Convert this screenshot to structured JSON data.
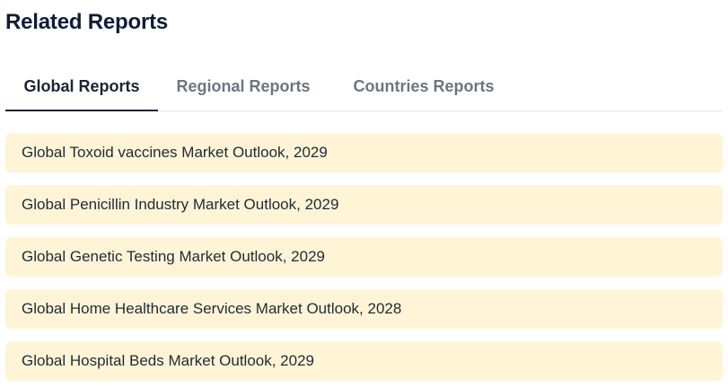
{
  "page": {
    "title": "Related Reports"
  },
  "tabs": [
    {
      "label": "Global Reports",
      "active": true
    },
    {
      "label": "Regional Reports",
      "active": false
    },
    {
      "label": "Countries Reports",
      "active": false
    }
  ],
  "reports": [
    {
      "title": "Global Toxoid vaccines Market Outlook, 2029"
    },
    {
      "title": "Global Penicillin Industry Market Outlook, 2029"
    },
    {
      "title": "Global Genetic Testing Market Outlook, 2029"
    },
    {
      "title": "Global Home Healthcare Services Market Outlook, 2028"
    },
    {
      "title": "Global Hospital Beds Market Outlook, 2029"
    }
  ],
  "colors": {
    "title": "#0f1e36",
    "tab_active": "#1b2533",
    "tab_inactive": "#6b7683",
    "item_background": "#fff4d6"
  }
}
